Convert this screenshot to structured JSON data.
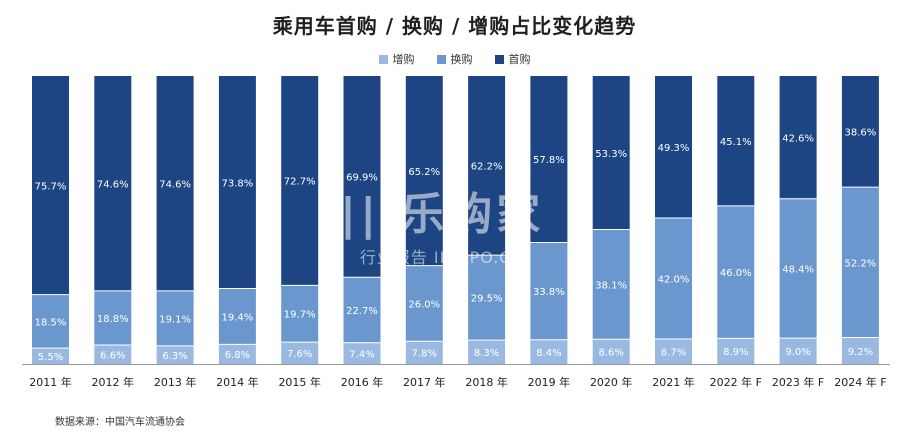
{
  "colors": {
    "zenggou": "#9ab9e2",
    "huangou": "#6b97cf",
    "shougou": "#1d4483"
  },
  "legend": [
    {
      "label": "增购",
      "color": "#9ab9e2"
    },
    {
      "label": "换购",
      "color": "#6b97cf"
    },
    {
      "label": "首购",
      "color": "#1d4483"
    }
  ],
  "source": "数据来源：中国汽车流通协会",
  "watermark": {
    "main": "|||乐购家",
    "sub": "行业报告  IPOIPO.CN"
  },
  "chart_data": {
    "type": "bar",
    "stacked": true,
    "percent": true,
    "title": "乘用车首购 / 换购 / 增购占比变化趋势",
    "categories": [
      "2011 年",
      "2012 年",
      "2013 年",
      "2014 年",
      "2015 年",
      "2016 年",
      "2017 年",
      "2018 年",
      "2019 年",
      "2020 年",
      "2021 年",
      "2022 年 F",
      "2023 年 F",
      "2024 年 F"
    ],
    "series": [
      {
        "name": "增购",
        "values": [
          5.5,
          6.6,
          6.3,
          6.8,
          7.6,
          7.4,
          7.8,
          8.3,
          8.4,
          8.6,
          8.7,
          8.9,
          9.0,
          9.2
        ],
        "labels": [
          "5.5%",
          "6.6%",
          "6.3%",
          "6.8%",
          "7.6%",
          "7.4%",
          "7.8%",
          "8.3%",
          "8.4%",
          "8.6%",
          "8.7%",
          "8.9%",
          "9.0%",
          "9.2%"
        ]
      },
      {
        "name": "换购",
        "values": [
          18.5,
          18.8,
          19.1,
          19.4,
          19.7,
          22.7,
          26.0,
          29.5,
          33.8,
          38.1,
          42.0,
          46.0,
          48.4,
          52.2
        ],
        "labels": [
          "18.5%",
          "18.8%",
          "19.1%",
          "19.4%",
          "19.7%",
          "22.7%",
          "26.0%",
          "29.5%",
          "33.8%",
          "38.1%",
          "42.0%",
          "46.0%",
          "48.4%",
          "52.2%"
        ]
      },
      {
        "name": "首购",
        "values": [
          75.7,
          74.6,
          74.6,
          73.8,
          72.7,
          69.9,
          65.2,
          62.2,
          57.8,
          53.3,
          49.3,
          45.1,
          42.6,
          38.6
        ],
        "labels": [
          "75.7%",
          "74.6%",
          "74.6%",
          "73.8%",
          "72.7%",
          "69.9%",
          "65.2%",
          "62.2%",
          "57.8%",
          "53.3%",
          "49.3%",
          "45.1%",
          "42.6%",
          "38.6%"
        ]
      }
    ],
    "ylim": [
      0,
      100
    ],
    "grid": false,
    "legend_position": "top-center"
  }
}
